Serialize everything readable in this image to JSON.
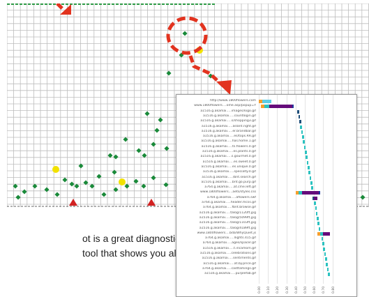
{
  "grid_view": {
    "cols": 42,
    "rows": 24,
    "grid_color": "#bdbdbd",
    "marker_color": "#1a8a3a",
    "highlight_color": "#f2e200",
    "warning_color": "#d22222",
    "annotation_color": "#e2331f"
  },
  "caption": {
    "line1": "ot is a great diagnostic",
    "line2": "tool that shows you all"
  },
  "waterfall": {
    "rows": [
      {
        "url": "http://www.1800flowers.com",
        "segments": [
          [
            0.0,
            0.04,
            "#f59f2d"
          ],
          [
            0.04,
            0.14,
            "#5ccde6"
          ]
        ]
      },
      {
        "url": "www.1800flowers....ome.asp/popup=Y",
        "segments": [
          [
            0.02,
            0.06,
            "#f59f2d"
          ],
          [
            0.06,
            0.11,
            "#2cc2c0"
          ],
          [
            0.11,
            0.36,
            "#650b7a"
          ],
          [
            0.36,
            0.37,
            "#1f3a9e"
          ]
        ]
      },
      {
        "url": "a1516.g.akamai.....images/logo.gif",
        "segments": [
          [
            0.42,
            0.44,
            "#1f4f7a"
          ]
        ]
      },
      {
        "url": "a1516.g.akamai.....countlogin.gif",
        "segments": [
          [
            0.43,
            0.45,
            "#1f4f7a"
          ]
        ]
      },
      {
        "url": "a1516.g.akamai.....s/shopping3.gif",
        "segments": [
          [
            0.44,
            0.46,
            "#1f4f7a"
          ]
        ]
      },
      {
        "url": "a1516.g.akamai.....aslant.right.gif",
        "segments": [
          [
            0.45,
            0.47,
            "#2cc2c0"
          ]
        ]
      },
      {
        "url": "a1516.g.akamai.....er.brandbar.gif",
        "segments": [
          [
            0.46,
            0.48,
            "#2cc2c0"
          ]
        ]
      },
      {
        "url": "a1516.g.akamai.....es/tops.RR.gif",
        "segments": [
          [
            0.47,
            0.49,
            "#2cc2c0"
          ]
        ]
      },
      {
        "url": "a1516.g.akamai.....has.home.1.gif",
        "segments": [
          [
            0.48,
            0.5,
            "#2cc2c0"
          ]
        ]
      },
      {
        "url": "a1516.g.akamai.....ts.flowers.0.gif",
        "segments": [
          [
            0.49,
            0.51,
            "#2cc2c0"
          ]
        ]
      },
      {
        "url": "a1516.g.akamai.....es.plants.0.gif",
        "segments": [
          [
            0.5,
            0.52,
            "#2cc2c0"
          ]
        ]
      },
      {
        "url": "a1516.g.akamai.....s.gourmet.0.gif",
        "segments": [
          [
            0.51,
            0.53,
            "#2cc2c0"
          ]
        ]
      },
      {
        "url": "a1516.g.akamai.....es.sweet.0.gif",
        "segments": [
          [
            0.52,
            0.54,
            "#2cc2c0"
          ]
        ]
      },
      {
        "url": "a1516.g.akamai.....es.unique.0.gif",
        "segments": [
          [
            0.53,
            0.55,
            "#2cc2c0"
          ]
        ]
      },
      {
        "url": "a1516.g.akamai.....specialty.0.gif",
        "segments": [
          [
            0.54,
            0.56,
            "#2cc2c0"
          ]
        ]
      },
      {
        "url": "a1516.g.akamai...../bnt.search.gif",
        "segments": [
          [
            0.55,
            0.57,
            "#2cc2c0"
          ]
        ]
      },
      {
        "url": "a1516.g.akamai.....bnt.go.purp.gif",
        "segments": [
          [
            0.56,
            0.58,
            "#2cc2c0"
          ]
        ]
      },
      {
        "url": "a764.g.akamai.....at.cme.left.gif",
        "segments": [
          [
            0.57,
            0.59,
            "#2cc2c0"
          ]
        ]
      },
      {
        "url": "www.1800flowers....aets/styles.css",
        "segments": [
          [
            0.4,
            0.43,
            "#f59f2d"
          ],
          [
            0.43,
            0.47,
            "#2cc2c0"
          ],
          [
            0.47,
            0.65,
            "#650b7a"
          ],
          [
            0.65,
            0.66,
            "#1f3a9e"
          ]
        ]
      },
      {
        "url": "a764.g.akamai.....aflowers.swf",
        "segments": [
          [
            0.58,
            0.6,
            "#1f4f7a"
          ],
          [
            0.6,
            0.64,
            "#650b7a"
          ]
        ]
      },
      {
        "url": "a764.g.akamai.....header.mcss.gif",
        "segments": [
          [
            0.6,
            0.62,
            "#2cc2c0"
          ]
        ]
      },
      {
        "url": "a764.g.akamai.....fbnt.browse.gif",
        "segments": [
          [
            0.61,
            0.63,
            "#2cc2c0"
          ]
        ]
      },
      {
        "url": "a1516.g.akamai.....talog/1120ft.jpg",
        "segments": [
          [
            0.62,
            0.64,
            "#2cc2c0"
          ]
        ]
      },
      {
        "url": "a1516.g.akamai.....talog/5099ft.jpg",
        "segments": [
          [
            0.63,
            0.65,
            "#2cc2c0"
          ]
        ]
      },
      {
        "url": "a1516.g.akamai.....talog/1103ft.jpg",
        "segments": [
          [
            0.64,
            0.66,
            "#2cc2c0"
          ]
        ]
      },
      {
        "url": "a1516.g.akamai.....talog/4189ft.jpg",
        "segments": [
          [
            0.65,
            0.67,
            "#2cc2c0"
          ]
        ]
      },
      {
        "url": "www.1800flowers....bda/WhyQuiet.js",
        "segments": [
          [
            0.64,
            0.67,
            "#f59f2d"
          ],
          [
            0.67,
            0.7,
            "#2cc2c0"
          ],
          [
            0.7,
            0.77,
            "#650b7a"
          ]
        ]
      },
      {
        "url": "a764.g.akamai.....llights.415.gif",
        "segments": [
          [
            0.68,
            0.7,
            "#2cc2c0"
          ]
        ]
      },
      {
        "url": "a764.g.akamai.....ages/spacer.gif",
        "segments": [
          [
            0.69,
            0.71,
            "#2cc2c0"
          ]
        ]
      },
      {
        "url": "a1516.g.akamai.....t.incamom.gif",
        "segments": [
          [
            0.7,
            0.72,
            "#2cc2c0"
          ]
        ]
      },
      {
        "url": "a1516.g.akamai.....celebrations.gif",
        "segments": [
          [
            0.71,
            0.73,
            "#2cc2c0"
          ]
        ]
      },
      {
        "url": "a1516.g.akamai.....sentiments.gif",
        "segments": [
          [
            0.72,
            0.74,
            "#2cc2c0"
          ]
        ]
      },
      {
        "url": "a1516.g.akamai.....at.by.price.gif",
        "segments": [
          [
            0.73,
            0.75,
            "#2cc2c0"
          ]
        ]
      },
      {
        "url": "a764.g.akamai.....casttamings.gif",
        "segments": [
          [
            0.74,
            0.76,
            "#2cc2c0"
          ]
        ]
      },
      {
        "url": "a1516.g.akamai.....purplefab.gif",
        "segments": [
          [
            0.75,
            0.77,
            "#2cc2c0"
          ]
        ]
      }
    ],
    "ticks": [
      "0.00",
      "0.10",
      "0.20",
      "0.30",
      "0.40",
      "0.50",
      "0.60",
      "0.70",
      "0.80"
    ]
  }
}
